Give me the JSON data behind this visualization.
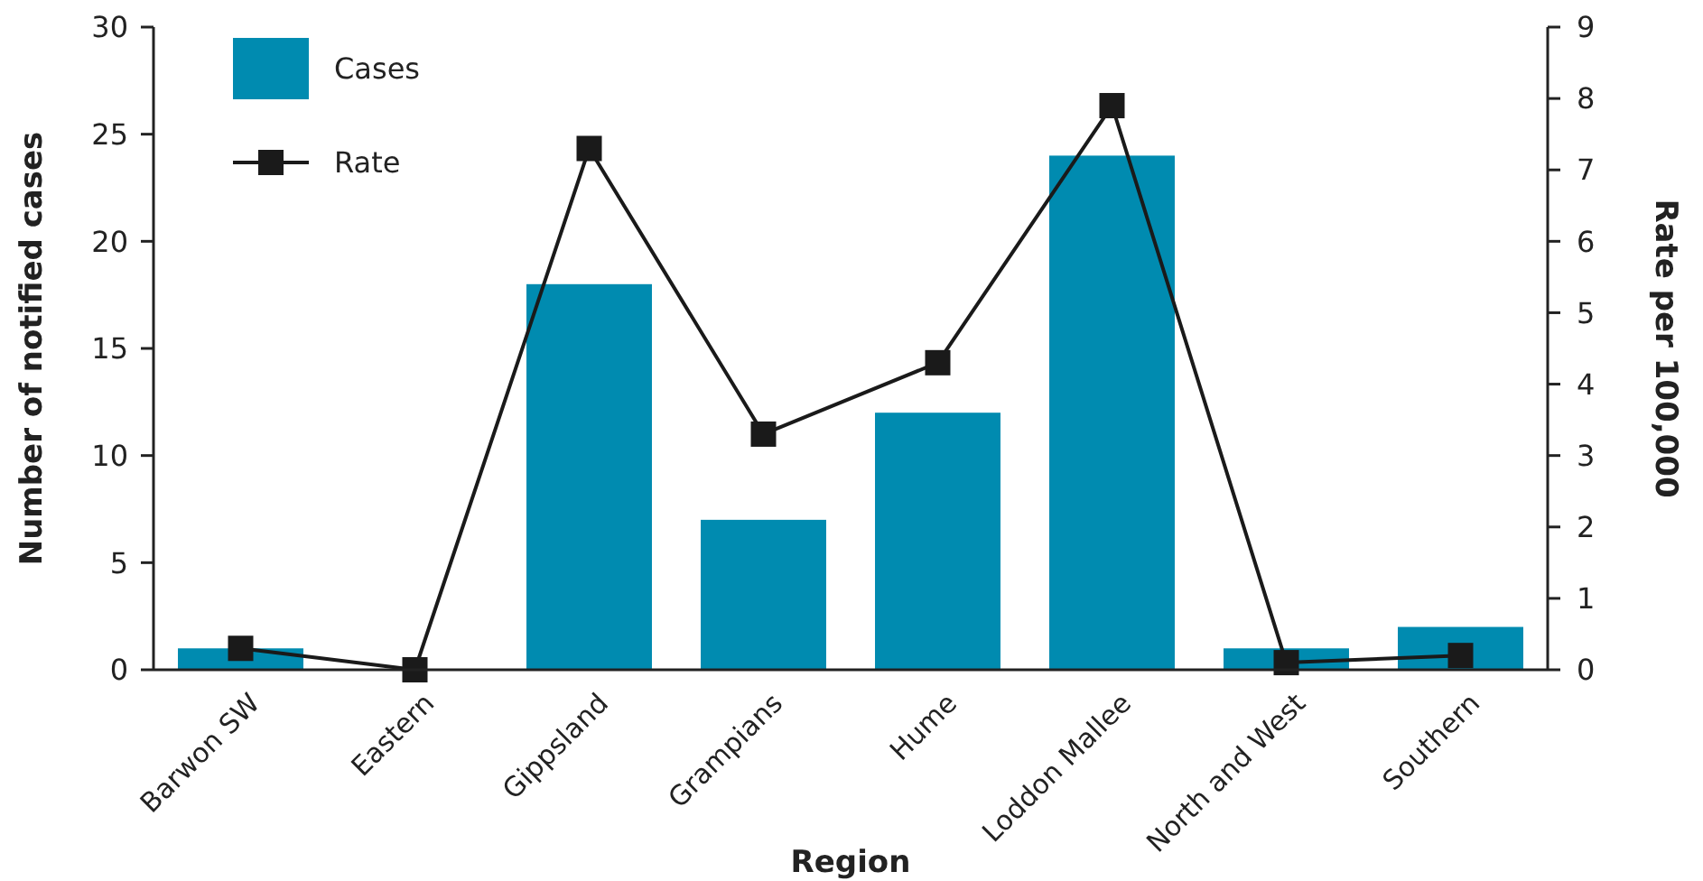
{
  "chart_data": {
    "type": "bar",
    "xlabel": "Region",
    "ylabel": "Number of notified cases",
    "y2label": "Rate per 100,000",
    "categories": [
      "Barwon SW",
      "Eastern",
      "Gippsland",
      "Grampians",
      "Hume",
      "Loddon Mallee",
      "North and West",
      "Southern"
    ],
    "series": [
      {
        "name": "Cases",
        "color": "#008bb0",
        "values": [
          1,
          0,
          18,
          7,
          12,
          24,
          1,
          2
        ]
      },
      {
        "name": "Rate",
        "type": "line",
        "axis": "y2",
        "color": "#1a1a1a",
        "values": [
          0.3,
          0,
          7.3,
          3.3,
          4.3,
          7.9,
          0.1,
          0.2
        ]
      }
    ],
    "ylim": [
      0,
      30
    ],
    "yticks": [
      0,
      5,
      10,
      15,
      20,
      25,
      30
    ],
    "y2lim": [
      0,
      9
    ],
    "y2ticks": [
      0,
      1,
      2,
      3,
      4,
      5,
      6,
      7,
      8,
      9
    ],
    "grid": false,
    "legend": "top left",
    "marker": "square",
    "line_style": "solid"
  }
}
